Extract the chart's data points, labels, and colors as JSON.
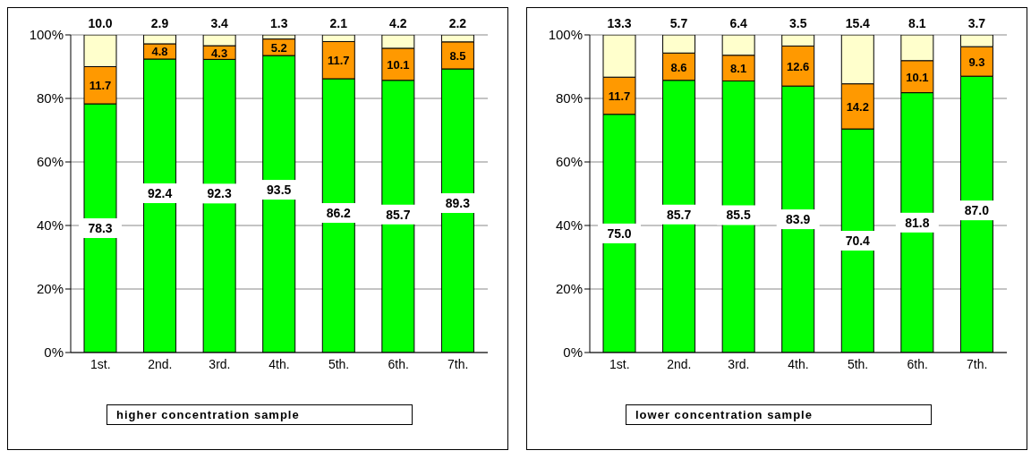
{
  "chart_data": [
    {
      "type": "bar",
      "title": "higher concentration sample",
      "categories": [
        "1st.",
        "2nd.",
        "3rd.",
        "4th.",
        "5th.",
        "6th.",
        "7th."
      ],
      "stacked": true,
      "grid": "y",
      "ylim": [
        0,
        100
      ],
      "yticks": [
        {
          "value": 0,
          "label": "0%"
        },
        {
          "value": 20,
          "label": "20%"
        },
        {
          "value": 40,
          "label": "40%"
        },
        {
          "value": 60,
          "label": "60%"
        },
        {
          "value": 80,
          "label": "80%"
        },
        {
          "value": 100,
          "label": "100%"
        }
      ],
      "series": [
        {
          "color": "#00ff00",
          "values": [
            78.3,
            92.4,
            92.3,
            93.5,
            86.2,
            85.7,
            89.3
          ],
          "value_labels": [
            "78.3",
            "92.4",
            "92.3",
            "93.5",
            "86.2",
            "85.7",
            "89.3"
          ]
        },
        {
          "color": "#ff9900",
          "values": [
            11.7,
            4.8,
            4.3,
            5.2,
            11.7,
            10.1,
            8.5
          ],
          "value_labels": [
            "11.7",
            "4.8",
            "4.3",
            "5.2",
            "11.7",
            "10.1",
            "8.5"
          ]
        },
        {
          "color": "#ffffcc",
          "values": [
            10.0,
            2.9,
            3.4,
            1.3,
            2.1,
            4.2,
            2.2
          ],
          "value_labels": [
            "10.0",
            "2.9",
            "3.4",
            "1.3",
            "2.1",
            "4.2",
            "2.2"
          ]
        }
      ]
    },
    {
      "type": "bar",
      "title": "lower concentration sample",
      "categories": [
        "1st.",
        "2nd.",
        "3rd.",
        "4th.",
        "5th.",
        "6th.",
        "7th."
      ],
      "stacked": true,
      "grid": "y",
      "ylim": [
        0,
        100
      ],
      "yticks": [
        {
          "value": 0,
          "label": "0%"
        },
        {
          "value": 20,
          "label": "20%"
        },
        {
          "value": 40,
          "label": "40%"
        },
        {
          "value": 60,
          "label": "60%"
        },
        {
          "value": 80,
          "label": "80%"
        },
        {
          "value": 100,
          "label": "100%"
        }
      ],
      "series": [
        {
          "color": "#00ff00",
          "values": [
            75.0,
            85.7,
            85.5,
            83.9,
            70.4,
            81.8,
            87.0
          ],
          "value_labels": [
            "75.0",
            "85.7",
            "85.5",
            "83.9",
            "70.4",
            "81.8",
            "87.0"
          ]
        },
        {
          "color": "#ff9900",
          "values": [
            11.7,
            8.6,
            8.1,
            12.6,
            14.2,
            10.1,
            9.3
          ],
          "value_labels": [
            "11.7",
            "8.6",
            "8.1",
            "12.6",
            "14.2",
            "10.1",
            "9.3"
          ]
        },
        {
          "color": "#ffffcc",
          "values": [
            13.3,
            5.7,
            6.4,
            3.5,
            15.4,
            8.1,
            3.7
          ],
          "value_labels": [
            "13.3",
            "5.7",
            "6.4",
            "3.5",
            "15.4",
            "8.1",
            "3.7"
          ]
        }
      ]
    }
  ]
}
